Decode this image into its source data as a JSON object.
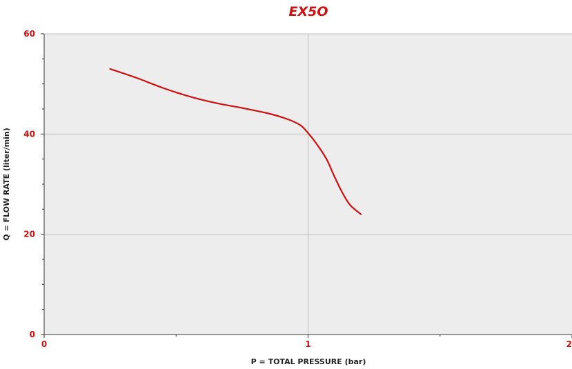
{
  "chart_data": {
    "type": "line",
    "title": "EX5O",
    "xlabel": "P = TOTAL PRESSURE (bar)",
    "ylabel": "Q = FLOW RATE (liter/min)",
    "xlim": [
      0,
      2
    ],
    "ylim": [
      0,
      60
    ],
    "x_ticks": [
      "0",
      "1",
      "2"
    ],
    "y_ticks": [
      "0",
      "20",
      "40",
      "60"
    ],
    "grid": true,
    "series": [
      {
        "x": [
          0.25,
          0.35,
          0.45,
          0.55,
          0.65,
          0.75,
          0.85,
          0.92,
          0.97,
          1.0,
          1.03,
          1.07,
          1.1,
          1.13,
          1.16,
          1.2
        ],
        "y": [
          53,
          51.2,
          49.2,
          47.5,
          46.2,
          45.2,
          44.1,
          43.0,
          41.8,
          40.2,
          38.2,
          35.0,
          31.5,
          28.3,
          25.8,
          24
        ]
      }
    ],
    "colors": {
      "line": "#cc1111",
      "accent": "#cc1111",
      "plot_bg": "#ededed",
      "grid": "#bfbfbf",
      "axis": "#333333"
    }
  }
}
